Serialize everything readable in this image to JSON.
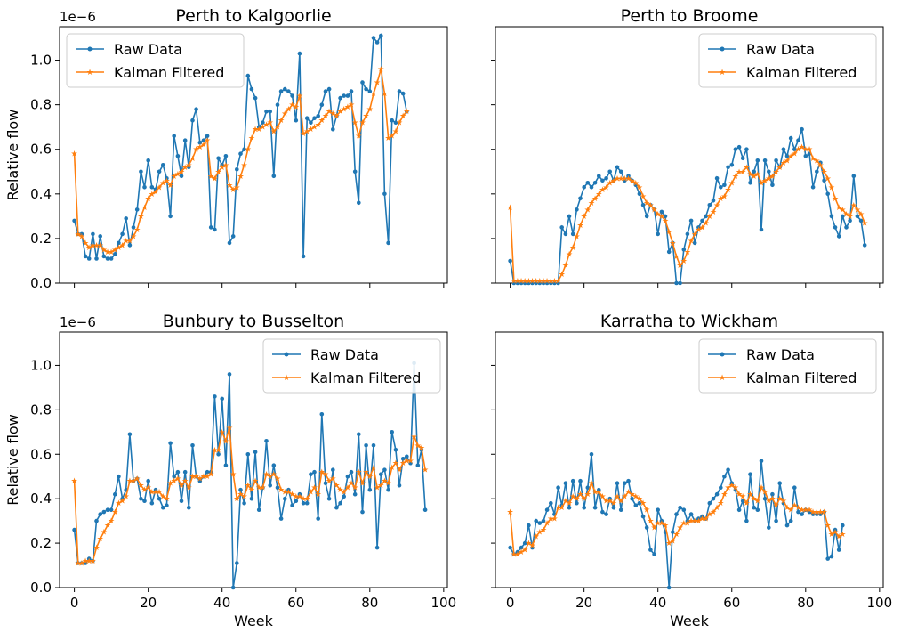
{
  "figure": {
    "xlabel": "Week",
    "ylabel": "Relative flow",
    "offset_label": "1e−6"
  },
  "colors": {
    "raw": "#1f77b4",
    "kalman": "#ff7f0e"
  },
  "chart_data": [
    {
      "type": "line",
      "title": "Perth to Kalgoorlie",
      "xlabel": "",
      "ylabel": "Relative flow",
      "xlim": [
        -4,
        101
      ],
      "ylim": [
        0,
        1.15
      ],
      "xticks": [
        0,
        20,
        40,
        60,
        80,
        100
      ],
      "yticks": [
        0.0,
        0.2,
        0.4,
        0.6,
        0.8,
        1.0
      ],
      "xtick_labels": [
        "",
        "",
        "",
        "",
        "",
        ""
      ],
      "ytick_labels": [
        "0.0",
        "0.2",
        "0.4",
        "0.6",
        "0.8",
        "1.0"
      ],
      "show_y_labels": true,
      "offset_label": "1e−6",
      "legend": [
        "Raw Data",
        "Kalman Filtered"
      ],
      "legend_position": "top-left",
      "series": [
        {
          "name": "Raw Data",
          "key": "raw",
          "values": [
            0.28,
            0.22,
            0.22,
            0.12,
            0.11,
            0.22,
            0.11,
            0.21,
            0.12,
            0.11,
            0.11,
            0.13,
            0.18,
            0.22,
            0.29,
            0.17,
            0.25,
            0.33,
            0.5,
            0.43,
            0.55,
            0.43,
            0.42,
            0.5,
            0.53,
            0.47,
            0.3,
            0.66,
            0.57,
            0.48,
            0.64,
            0.52,
            0.73,
            0.78,
            0.63,
            0.64,
            0.66,
            0.25,
            0.24,
            0.56,
            0.53,
            0.57,
            0.18,
            0.21,
            0.51,
            0.58,
            0.6,
            0.93,
            0.87,
            0.83,
            0.7,
            0.72,
            0.77,
            0.77,
            0.48,
            0.8,
            0.86,
            0.87,
            0.86,
            0.84,
            0.73,
            1.03,
            0.12,
            0.74,
            0.72,
            0.74,
            0.75,
            0.8,
            0.86,
            0.87,
            0.69,
            0.75,
            0.83,
            0.84,
            0.84,
            0.86,
            0.5,
            0.36,
            0.9,
            0.87,
            0.86,
            1.1,
            1.08,
            1.11,
            0.4,
            0.18,
            0.73,
            0.72,
            0.86,
            0.85,
            0.77
          ]
        },
        {
          "name": "Kalman Filtered",
          "key": "kalman",
          "values": [
            0.58,
            0.22,
            0.21,
            0.18,
            0.16,
            0.17,
            0.17,
            0.17,
            0.15,
            0.14,
            0.14,
            0.15,
            0.16,
            0.17,
            0.19,
            0.19,
            0.21,
            0.24,
            0.3,
            0.34,
            0.38,
            0.4,
            0.41,
            0.43,
            0.45,
            0.46,
            0.44,
            0.48,
            0.49,
            0.5,
            0.52,
            0.53,
            0.56,
            0.6,
            0.61,
            0.62,
            0.64,
            0.48,
            0.47,
            0.5,
            0.52,
            0.53,
            0.44,
            0.42,
            0.43,
            0.48,
            0.53,
            0.6,
            0.65,
            0.69,
            0.69,
            0.7,
            0.71,
            0.72,
            0.68,
            0.7,
            0.73,
            0.76,
            0.78,
            0.8,
            0.79,
            0.84,
            0.67,
            0.68,
            0.69,
            0.7,
            0.71,
            0.73,
            0.75,
            0.77,
            0.76,
            0.75,
            0.77,
            0.78,
            0.79,
            0.8,
            0.72,
            0.66,
            0.72,
            0.75,
            0.78,
            0.85,
            0.9,
            0.96,
            0.85,
            0.65,
            0.66,
            0.68,
            0.72,
            0.75,
            0.77
          ]
        }
      ]
    },
    {
      "type": "line",
      "title": "Perth to Broome",
      "xlabel": "",
      "ylabel": "",
      "xlim": [
        -4,
        101
      ],
      "ylim": [
        0,
        1.15
      ],
      "xticks": [
        0,
        20,
        40,
        60,
        80,
        100
      ],
      "yticks": [
        0.0,
        0.2,
        0.4,
        0.6,
        0.8,
        1.0
      ],
      "xtick_labels": [
        "",
        "",
        "",
        "",
        "",
        ""
      ],
      "ytick_labels": [
        "",
        "",
        "",
        "",
        "",
        ""
      ],
      "show_y_labels": false,
      "offset_label": "",
      "legend": [
        "Raw Data",
        "Kalman Filtered"
      ],
      "legend_position": "top-right",
      "series": [
        {
          "name": "Raw Data",
          "key": "raw",
          "values": [
            0.1,
            0,
            0,
            0,
            0,
            0,
            0,
            0,
            0,
            0,
            0,
            0,
            0,
            0,
            0.25,
            0.22,
            0.3,
            0.22,
            0.33,
            0.38,
            0.43,
            0.45,
            0.43,
            0.45,
            0.48,
            0.46,
            0.47,
            0.5,
            0.46,
            0.52,
            0.5,
            0.46,
            0.48,
            0.46,
            0.44,
            0.4,
            0.35,
            0.3,
            0.35,
            0.33,
            0.22,
            0.32,
            0.3,
            0.14,
            0.18,
            0.0,
            0.0,
            0.15,
            0.22,
            0.28,
            0.18,
            0.25,
            0.28,
            0.3,
            0.35,
            0.37,
            0.47,
            0.43,
            0.44,
            0.52,
            0.53,
            0.6,
            0.61,
            0.56,
            0.6,
            0.45,
            0.5,
            0.55,
            0.24,
            0.55,
            0.5,
            0.44,
            0.55,
            0.52,
            0.6,
            0.57,
            0.65,
            0.6,
            0.64,
            0.69,
            0.57,
            0.58,
            0.43,
            0.5,
            0.54,
            0.46,
            0.4,
            0.3,
            0.25,
            0.21,
            0.3,
            0.25,
            0.28,
            0.48,
            0.3,
            0.28,
            0.17
          ]
        },
        {
          "name": "Kalman Filtered",
          "key": "kalman",
          "values": [
            0.34,
            0.01,
            0.01,
            0.01,
            0.01,
            0.01,
            0.01,
            0.01,
            0.01,
            0.01,
            0.01,
            0.01,
            0.01,
            0.01,
            0.04,
            0.08,
            0.13,
            0.16,
            0.21,
            0.26,
            0.3,
            0.33,
            0.36,
            0.38,
            0.4,
            0.42,
            0.43,
            0.45,
            0.46,
            0.47,
            0.47,
            0.47,
            0.47,
            0.46,
            0.45,
            0.43,
            0.39,
            0.36,
            0.35,
            0.33,
            0.31,
            0.3,
            0.28,
            0.23,
            0.18,
            0.12,
            0.08,
            0.1,
            0.14,
            0.19,
            0.22,
            0.24,
            0.25,
            0.27,
            0.3,
            0.32,
            0.35,
            0.38,
            0.39,
            0.42,
            0.45,
            0.48,
            0.5,
            0.5,
            0.52,
            0.49,
            0.48,
            0.49,
            0.45,
            0.46,
            0.47,
            0.48,
            0.5,
            0.52,
            0.54,
            0.55,
            0.57,
            0.58,
            0.6,
            0.61,
            0.6,
            0.6,
            0.56,
            0.55,
            0.53,
            0.5,
            0.47,
            0.43,
            0.38,
            0.34,
            0.33,
            0.31,
            0.3,
            0.35,
            0.33,
            0.31,
            0.27
          ]
        }
      ]
    },
    {
      "type": "line",
      "title": "Bunbury to Busselton",
      "xlabel": "Week",
      "ylabel": "Relative flow",
      "xlim": [
        -4,
        101
      ],
      "ylim": [
        0,
        1.15
      ],
      "xticks": [
        0,
        20,
        40,
        60,
        80,
        100
      ],
      "yticks": [
        0.0,
        0.2,
        0.4,
        0.6,
        0.8,
        1.0
      ],
      "xtick_labels": [
        "0",
        "20",
        "40",
        "60",
        "80",
        "100"
      ],
      "ytick_labels": [
        "0.0",
        "0.2",
        "0.4",
        "0.6",
        "0.8",
        "1.0"
      ],
      "show_y_labels": true,
      "offset_label": "1e−6",
      "legend": [
        "Raw Data",
        "Kalman Filtered"
      ],
      "legend_position": "top-right",
      "series": [
        {
          "name": "Raw Data",
          "key": "raw",
          "values": [
            0.26,
            0.11,
            0.11,
            0.11,
            0.13,
            0.12,
            0.3,
            0.33,
            0.34,
            0.35,
            0.35,
            0.42,
            0.5,
            0.4,
            0.44,
            0.69,
            0.48,
            0.49,
            0.4,
            0.39,
            0.48,
            0.38,
            0.44,
            0.4,
            0.36,
            0.37,
            0.65,
            0.5,
            0.52,
            0.39,
            0.52,
            0.36,
            0.64,
            0.5,
            0.48,
            0.5,
            0.52,
            0.52,
            0.86,
            0.6,
            0.85,
            0.55,
            0.96,
            0.0,
            0.11,
            0.44,
            0.38,
            0.6,
            0.4,
            0.61,
            0.35,
            0.45,
            0.66,
            0.46,
            0.55,
            0.45,
            0.31,
            0.4,
            0.44,
            0.37,
            0.39,
            0.42,
            0.38,
            0.38,
            0.51,
            0.52,
            0.31,
            0.78,
            0.47,
            0.4,
            0.53,
            0.36,
            0.38,
            0.41,
            0.5,
            0.52,
            0.42,
            0.69,
            0.34,
            0.64,
            0.44,
            0.64,
            0.18,
            0.51,
            0.53,
            0.44,
            0.7,
            0.62,
            0.46,
            0.58,
            0.59,
            0.56,
            1.01,
            0.55,
            0.62,
            0.35
          ]
        },
        {
          "name": "Kalman Filtered",
          "key": "kalman",
          "values": [
            0.48,
            0.11,
            0.11,
            0.12,
            0.12,
            0.12,
            0.18,
            0.22,
            0.25,
            0.28,
            0.3,
            0.34,
            0.38,
            0.39,
            0.41,
            0.48,
            0.48,
            0.49,
            0.46,
            0.44,
            0.45,
            0.43,
            0.43,
            0.43,
            0.41,
            0.4,
            0.47,
            0.48,
            0.49,
            0.46,
            0.48,
            0.45,
            0.5,
            0.5,
            0.49,
            0.5,
            0.5,
            0.51,
            0.62,
            0.62,
            0.7,
            0.66,
            0.72,
            0.51,
            0.4,
            0.42,
            0.41,
            0.46,
            0.44,
            0.48,
            0.45,
            0.45,
            0.51,
            0.5,
            0.51,
            0.49,
            0.44,
            0.43,
            0.43,
            0.42,
            0.41,
            0.41,
            0.4,
            0.4,
            0.43,
            0.45,
            0.42,
            0.52,
            0.51,
            0.48,
            0.49,
            0.46,
            0.44,
            0.43,
            0.45,
            0.47,
            0.45,
            0.52,
            0.47,
            0.52,
            0.5,
            0.54,
            0.45,
            0.46,
            0.48,
            0.47,
            0.54,
            0.56,
            0.53,
            0.56,
            0.57,
            0.57,
            0.68,
            0.64,
            0.63,
            0.53
          ]
        }
      ]
    },
    {
      "type": "line",
      "title": "Karratha to Wickham",
      "xlabel": "Week",
      "ylabel": "",
      "xlim": [
        -4,
        101
      ],
      "ylim": [
        0,
        1.15
      ],
      "xticks": [
        0,
        20,
        40,
        60,
        80,
        100
      ],
      "yticks": [
        0.0,
        0.2,
        0.4,
        0.6,
        0.8,
        1.0
      ],
      "xtick_labels": [
        "0",
        "20",
        "40",
        "60",
        "80",
        "100"
      ],
      "ytick_labels": [
        "",
        "",
        "",
        "",
        "",
        ""
      ],
      "show_y_labels": false,
      "offset_label": "",
      "legend": [
        "Raw Data",
        "Kalman Filtered"
      ],
      "legend_position": "top-right",
      "series": [
        {
          "name": "Raw Data",
          "key": "raw",
          "values": [
            0.18,
            0.15,
            0.16,
            0.18,
            0.2,
            0.28,
            0.18,
            0.3,
            0.29,
            0.3,
            0.35,
            0.38,
            0.33,
            0.45,
            0.37,
            0.47,
            0.36,
            0.48,
            0.38,
            0.48,
            0.36,
            0.45,
            0.6,
            0.36,
            0.44,
            0.34,
            0.33,
            0.4,
            0.36,
            0.47,
            0.35,
            0.47,
            0.48,
            0.4,
            0.37,
            0.38,
            0.32,
            0.27,
            0.17,
            0.15,
            0.35,
            0.3,
            0.25,
            0.0,
            0.25,
            0.33,
            0.36,
            0.35,
            0.3,
            0.33,
            0.3,
            0.31,
            0.32,
            0.31,
            0.38,
            0.4,
            0.42,
            0.45,
            0.5,
            0.53,
            0.47,
            0.44,
            0.35,
            0.39,
            0.3,
            0.51,
            0.36,
            0.35,
            0.57,
            0.4,
            0.27,
            0.42,
            0.3,
            0.47,
            0.38,
            0.28,
            0.3,
            0.45,
            0.34,
            0.33,
            0.35,
            0.34,
            0.33,
            0.33,
            0.33,
            0.34,
            0.13,
            0.14,
            0.26,
            0.17,
            0.28
          ]
        },
        {
          "name": "Kalman Filtered",
          "key": "kalman",
          "values": [
            0.34,
            0.15,
            0.15,
            0.16,
            0.17,
            0.2,
            0.19,
            0.23,
            0.25,
            0.26,
            0.29,
            0.31,
            0.31,
            0.36,
            0.36,
            0.39,
            0.38,
            0.41,
            0.4,
            0.42,
            0.4,
            0.42,
            0.47,
            0.43,
            0.43,
            0.41,
            0.39,
            0.39,
            0.38,
            0.41,
            0.39,
            0.41,
            0.43,
            0.42,
            0.41,
            0.4,
            0.38,
            0.35,
            0.3,
            0.27,
            0.29,
            0.29,
            0.28,
            0.2,
            0.21,
            0.24,
            0.27,
            0.29,
            0.29,
            0.3,
            0.3,
            0.3,
            0.31,
            0.31,
            0.33,
            0.34,
            0.36,
            0.38,
            0.42,
            0.45,
            0.46,
            0.45,
            0.42,
            0.41,
            0.38,
            0.42,
            0.4,
            0.39,
            0.45,
            0.43,
            0.39,
            0.4,
            0.37,
            0.4,
            0.39,
            0.36,
            0.35,
            0.37,
            0.36,
            0.35,
            0.35,
            0.35,
            0.34,
            0.34,
            0.34,
            0.34,
            0.28,
            0.24,
            0.25,
            0.23,
            0.24
          ]
        }
      ]
    }
  ]
}
